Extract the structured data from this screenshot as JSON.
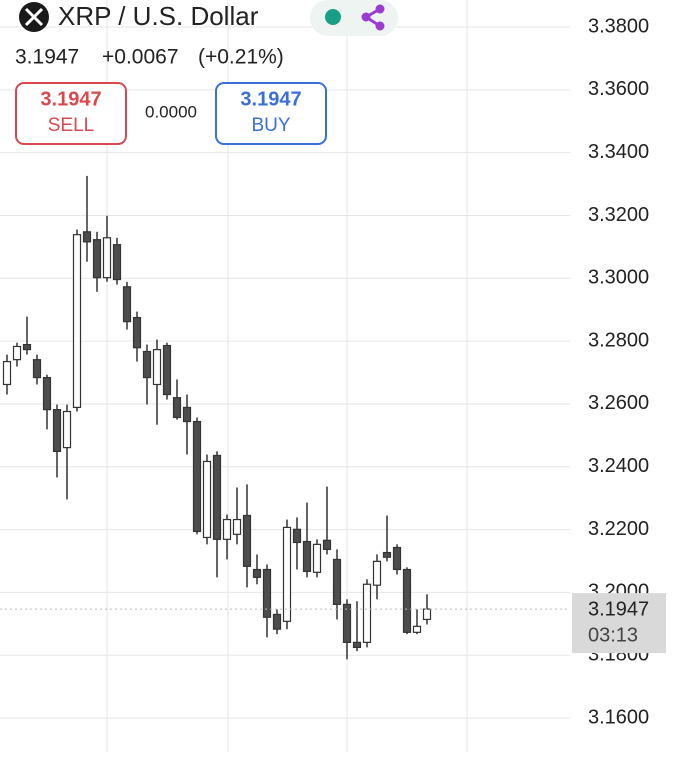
{
  "header": {
    "symbol": "XRP / U.S. Dollar",
    "price": "3.1947",
    "change": "+0.0067",
    "change_pct": "(+0.21%)"
  },
  "trade": {
    "sell_price": "3.1947",
    "sell_label": "SELL",
    "spread": "0.0000",
    "buy_price": "3.1947",
    "buy_label": "BUY"
  },
  "chart_data": {
    "type": "candlestick",
    "open": [
      3.2662,
      3.2741,
      3.2789,
      3.2741,
      3.2684,
      3.2582,
      3.2461,
      3.2589,
      3.3148,
      3.3123,
      3.3002,
      3.3107,
      3.2973,
      3.2875,
      3.2767,
      3.2662,
      3.2786,
      3.262,
      3.2589,
      3.2544,
      3.2175,
      3.2436,
      3.2169,
      3.2185,
      3.2245,
      3.2073,
      3.2073,
      3.193,
      3.1908,
      3.2201,
      3.2162,
      3.2064,
      3.2166,
      3.2105,
      3.1962,
      3.1841,
      3.1841,
      3.2023,
      3.2127,
      3.2143,
      3.2073,
      3.1873,
      3.1914
    ],
    "high": [
      3.2757,
      3.2795,
      3.2878,
      3.2757,
      3.2693,
      3.2598,
      3.2598,
      3.3155,
      3.3326,
      3.3148,
      3.3199,
      3.3129,
      3.2989,
      3.2894,
      3.2789,
      3.2805,
      3.2795,
      3.2678,
      3.263,
      3.2557,
      3.2439,
      3.2449,
      3.2248,
      3.2334,
      3.2344,
      3.2121,
      3.2089,
      3.1946,
      3.2232,
      3.2239,
      3.2286,
      3.2169,
      3.2337,
      3.2137,
      3.1978,
      3.1972,
      3.2042,
      3.2121,
      3.2245,
      3.2153,
      3.208,
      3.1946,
      3.1994
    ],
    "low": [
      3.263,
      3.2719,
      3.2757,
      3.2662,
      3.2519,
      3.2366,
      3.2296,
      3.2576,
      3.3053,
      3.2957,
      3.2989,
      3.298,
      3.2837,
      3.2735,
      3.2598,
      3.2534,
      3.2614,
      3.255,
      3.2439,
      3.2185,
      3.2153,
      3.2048,
      3.2105,
      3.2153,
      3.2016,
      3.2026,
      3.1857,
      3.1867,
      3.1883,
      3.2073,
      3.2048,
      3.2048,
      3.2121,
      3.1914,
      3.1787,
      3.1813,
      3.1825,
      3.1978,
      3.2099,
      3.2057,
      3.1867,
      3.1867,
      3.1898
    ],
    "close": [
      3.2735,
      3.2783,
      3.2773,
      3.2684,
      3.2582,
      3.2449,
      3.2576,
      3.3139,
      3.3116,
      3.3002,
      3.3129,
      3.2996,
      3.2862,
      3.2779,
      3.2684,
      3.2773,
      3.263,
      3.2557,
      3.2544,
      3.2194,
      3.2417,
      3.2169,
      3.2232,
      3.2232,
      3.2083,
      3.2048,
      3.1921,
      3.1883,
      3.2207,
      3.2159,
      3.2067,
      3.2153,
      3.2137,
      3.1962,
      3.1841,
      3.1825,
      3.2026,
      3.2099,
      3.2112,
      3.2073,
      3.1873,
      3.1892,
      3.1947
    ],
    "up_color": "#ffffff",
    "down_color": "#4d4d4d",
    "wick_color": "#333333",
    "ylim": [
      3.1492,
      3.3886
    ],
    "yticks": [
      {
        "value": 3.16,
        "label": "3.1600"
      },
      {
        "value": 3.18,
        "label": "3.1800"
      },
      {
        "value": 3.2,
        "label": "3.2000"
      },
      {
        "value": 3.22,
        "label": "3.2200"
      },
      {
        "value": 3.24,
        "label": "3.2400"
      },
      {
        "value": 3.26,
        "label": "3.2600"
      },
      {
        "value": 3.28,
        "label": "3.2800"
      },
      {
        "value": 3.3,
        "label": "3.3000"
      },
      {
        "value": 3.32,
        "label": "3.3200"
      },
      {
        "value": 3.34,
        "label": "3.3400"
      },
      {
        "value": 3.36,
        "label": "3.3600"
      },
      {
        "value": 3.38,
        "label": "3.3800"
      }
    ],
    "grid": true,
    "last_price": 3.1947,
    "countdown": "03:13"
  }
}
